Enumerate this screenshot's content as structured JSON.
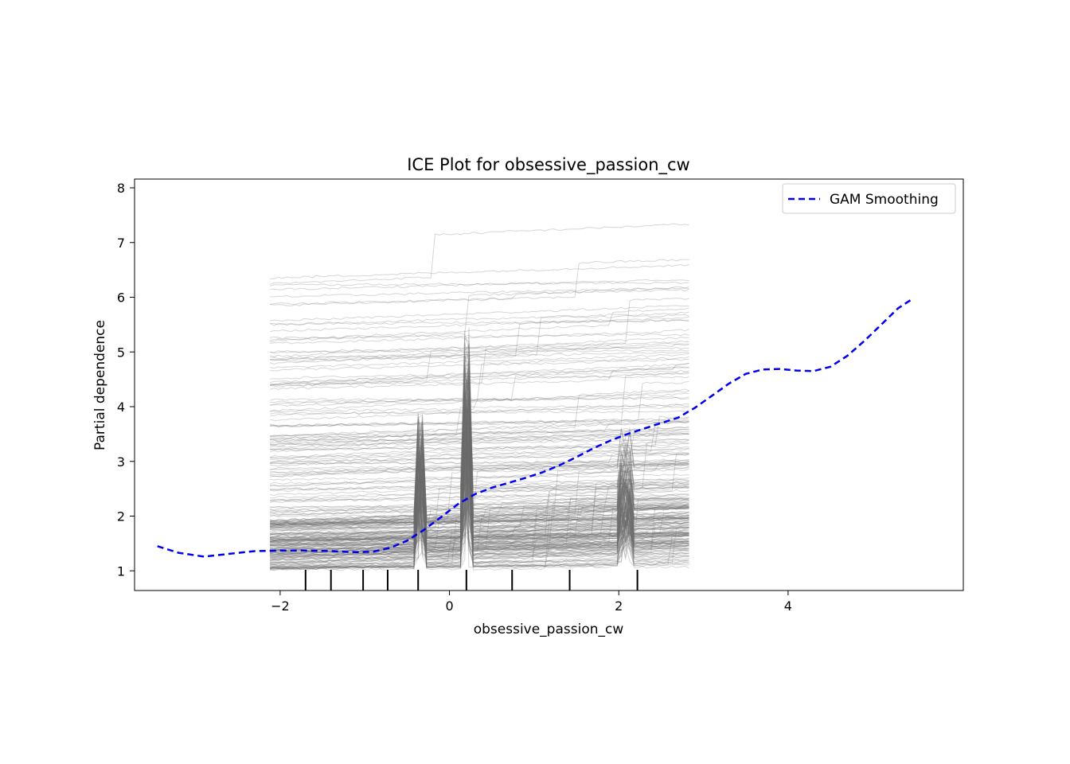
{
  "chart_data": {
    "type": "line",
    "title": "ICE Plot for obsessive_passion_cw",
    "xlabel": "obsessive_passion_cw",
    "ylabel": "Partial dependence",
    "xlim": [
      -3.72,
      6.07
    ],
    "ylim": [
      0.64,
      8.16
    ],
    "xticks": [
      -2,
      0,
      2,
      4
    ],
    "xtick_labels": [
      "−2",
      "0",
      "2",
      "4"
    ],
    "yticks": [
      1,
      2,
      3,
      4,
      5,
      6,
      7,
      8
    ],
    "ytick_labels": [
      "1",
      "2",
      "3",
      "4",
      "5",
      "6",
      "7",
      "8"
    ],
    "grid": false,
    "legend": {
      "position": "top-right",
      "entries": [
        "GAM Smoothing"
      ]
    },
    "colors": {
      "ice_lines": "#6b6b6b",
      "gam": "#0000ee",
      "rug": "#000000"
    },
    "ice": {
      "x_range": [
        -2.12,
        2.85
      ],
      "y_range": [
        1.0,
        7.5
      ],
      "description_count": 260
    },
    "series": [
      {
        "name": "GAM Smoothing",
        "style": "dashed",
        "x": [
          -3.45,
          -3.2,
          -2.9,
          -2.6,
          -2.3,
          -2.0,
          -1.7,
          -1.4,
          -1.1,
          -0.9,
          -0.7,
          -0.5,
          -0.3,
          -0.1,
          0.1,
          0.3,
          0.5,
          0.7,
          0.9,
          1.1,
          1.3,
          1.5,
          1.7,
          1.9,
          2.1,
          2.3,
          2.5,
          2.7,
          2.9,
          3.1,
          3.3,
          3.5,
          3.7,
          3.9,
          4.1,
          4.3,
          4.5,
          4.7,
          4.9,
          5.1,
          5.3,
          5.45
        ],
        "values": [
          1.45,
          1.33,
          1.26,
          1.31,
          1.36,
          1.37,
          1.37,
          1.36,
          1.34,
          1.35,
          1.42,
          1.55,
          1.75,
          1.98,
          2.22,
          2.4,
          2.52,
          2.61,
          2.7,
          2.8,
          2.93,
          3.08,
          3.24,
          3.38,
          3.5,
          3.6,
          3.7,
          3.8,
          3.98,
          4.2,
          4.42,
          4.6,
          4.68,
          4.69,
          4.66,
          4.65,
          4.73,
          4.93,
          5.2,
          5.5,
          5.8,
          5.95
        ]
      }
    ],
    "rug_x": [
      -1.7,
      -1.4,
      -1.02,
      -0.73,
      -0.37,
      0.2,
      0.74,
      1.42,
      2.22
    ]
  }
}
